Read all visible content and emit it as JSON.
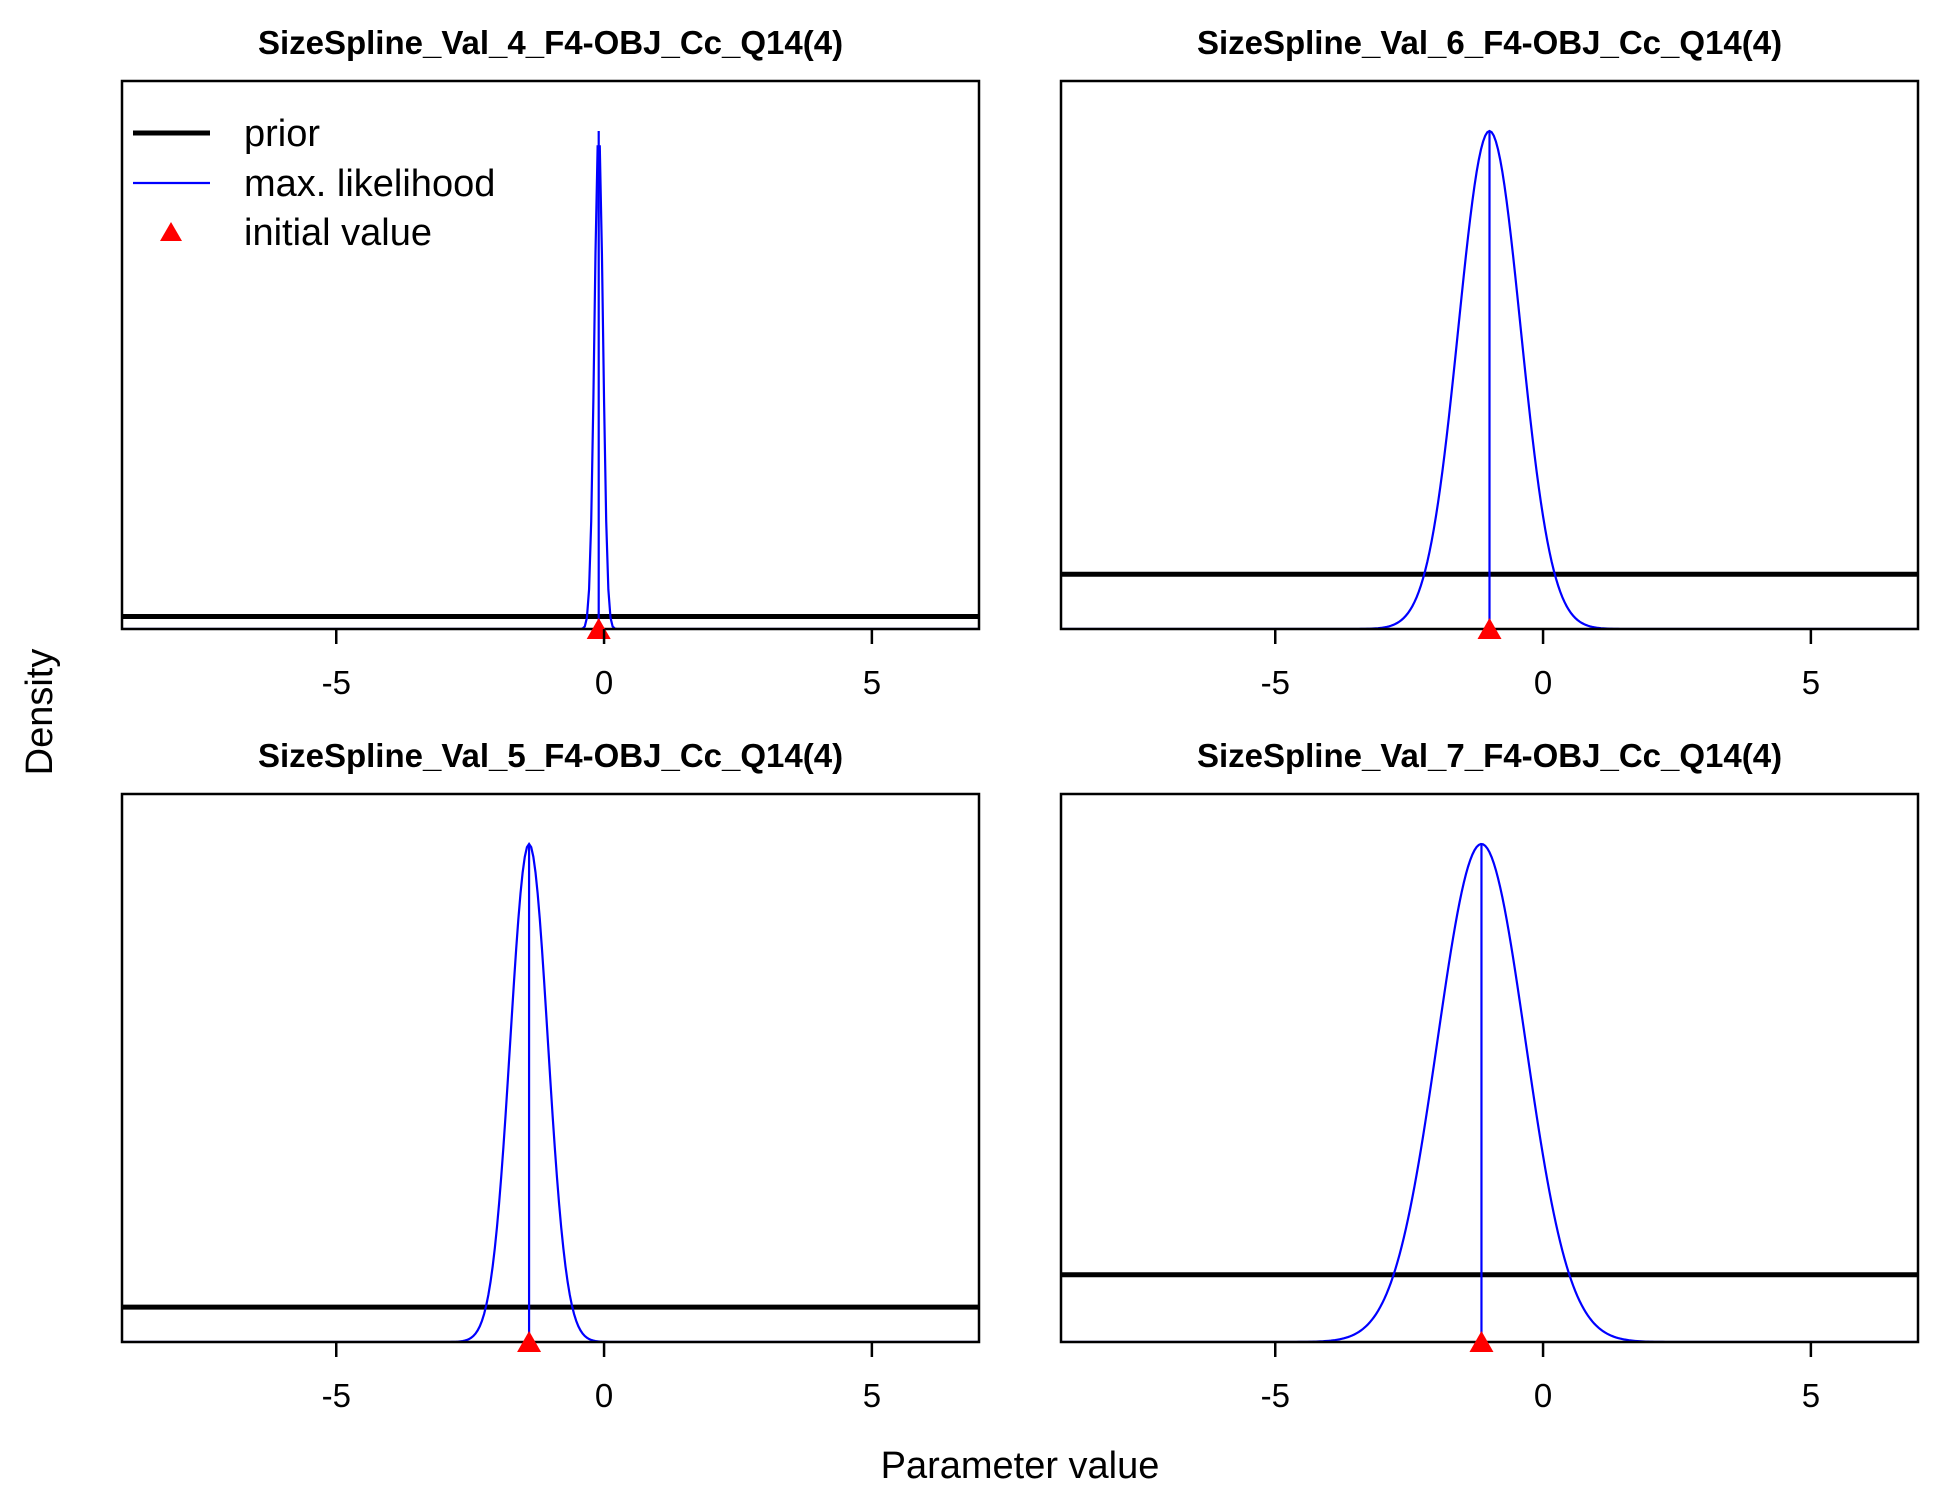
{
  "figure": {
    "xlabel": "Parameter value",
    "ylabel": "Density",
    "colors": {
      "prior": "#000000",
      "mle": "#0000ff",
      "initial": "#ff0000",
      "frame": "#000000"
    },
    "legend": {
      "placement": "top-left of first panel",
      "items": [
        {
          "label": "prior",
          "kind": "line-thick"
        },
        {
          "label": "max. likelihood",
          "kind": "line-thin"
        },
        {
          "label": "initial value",
          "kind": "triangle"
        }
      ]
    }
  },
  "chart_data": [
    {
      "type": "line",
      "title": "SizeSpline_Val_4_F4-OBJ_Cc_Q14(4)",
      "xlim": [
        -9,
        7
      ],
      "xticks": [
        -5,
        0,
        5
      ],
      "tick_labels": [
        "-5",
        "0",
        "5"
      ],
      "prior_level": 0.025,
      "mle_mean": -0.1,
      "mle_sd": 0.08,
      "initial_value": -0.1
    },
    {
      "type": "line",
      "title": "SizeSpline_Val_6_F4-OBJ_Cc_Q14(4)",
      "xlim": [
        -9,
        7
      ],
      "xticks": [
        -5,
        0,
        5
      ],
      "tick_labels": [
        "-5",
        "0",
        "5"
      ],
      "prior_level": 0.11,
      "mle_mean": -1.0,
      "mle_sd": 0.58,
      "initial_value": -1.0
    },
    {
      "type": "line",
      "title": "SizeSpline_Val_5_F4-OBJ_Cc_Q14(4)",
      "xlim": [
        -9,
        7
      ],
      "xticks": [
        -5,
        0,
        5
      ],
      "tick_labels": [
        "-5",
        "0",
        "5"
      ],
      "prior_level": 0.07,
      "mle_mean": -1.4,
      "mle_sd": 0.35,
      "initial_value": -1.4
    },
    {
      "type": "line",
      "title": "SizeSpline_Val_7_F4-OBJ_Cc_Q14(4)",
      "xlim": [
        -9,
        7
      ],
      "xticks": [
        -5,
        0,
        5
      ],
      "tick_labels": [
        "-5",
        "0",
        "5"
      ],
      "prior_level": 0.135,
      "mle_mean": -1.15,
      "mle_sd": 0.82,
      "initial_value": -1.15
    }
  ]
}
